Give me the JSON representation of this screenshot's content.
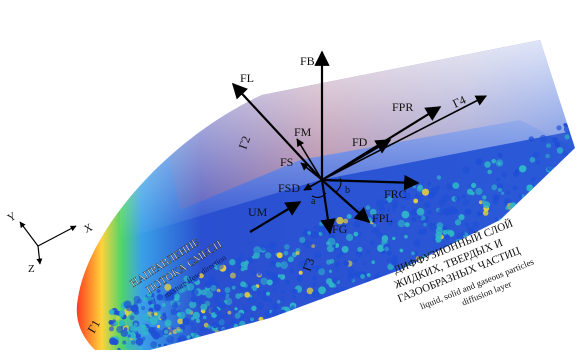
{
  "axes": {
    "x": "X",
    "y": "Y",
    "z": "Z"
  },
  "forces": {
    "fb": "FB",
    "fl": "FL",
    "fm": "FM",
    "fs": "FS",
    "fd": "FD",
    "fpr": "FPR",
    "fsd": "FSD",
    "um": "UM",
    "frc": "FRC",
    "fpl": "FPL",
    "fg": "FG"
  },
  "boundaries": {
    "g1": "Г1",
    "g2": "Г2",
    "g3": "Г3",
    "g4": "Г4"
  },
  "angles": {
    "a": "a",
    "b": "b"
  },
  "flow_label_ru": [
    "НАПРАВЛЕНИЕ",
    "ПОТОКА СМЕСИ"
  ],
  "flow_label_en": "mixture flow direction",
  "layer_label_ru": [
    "ДИФФУЗИОННЫЙ СЛОЙ",
    "ЖИДКИХ, ТВЕРДЫХ И",
    "ГАЗООБРАЗНЫХ ЧАСТИЦ"
  ],
  "layer_label_en": [
    "liquid, solid and gaseous particles",
    "diffusion layer"
  ],
  "colors": {
    "particle_blue": "#1f4fd6",
    "particle_cyan": "#2fb6c8",
    "particle_yellow": "#e8d23a",
    "arrow": "#000000"
  }
}
